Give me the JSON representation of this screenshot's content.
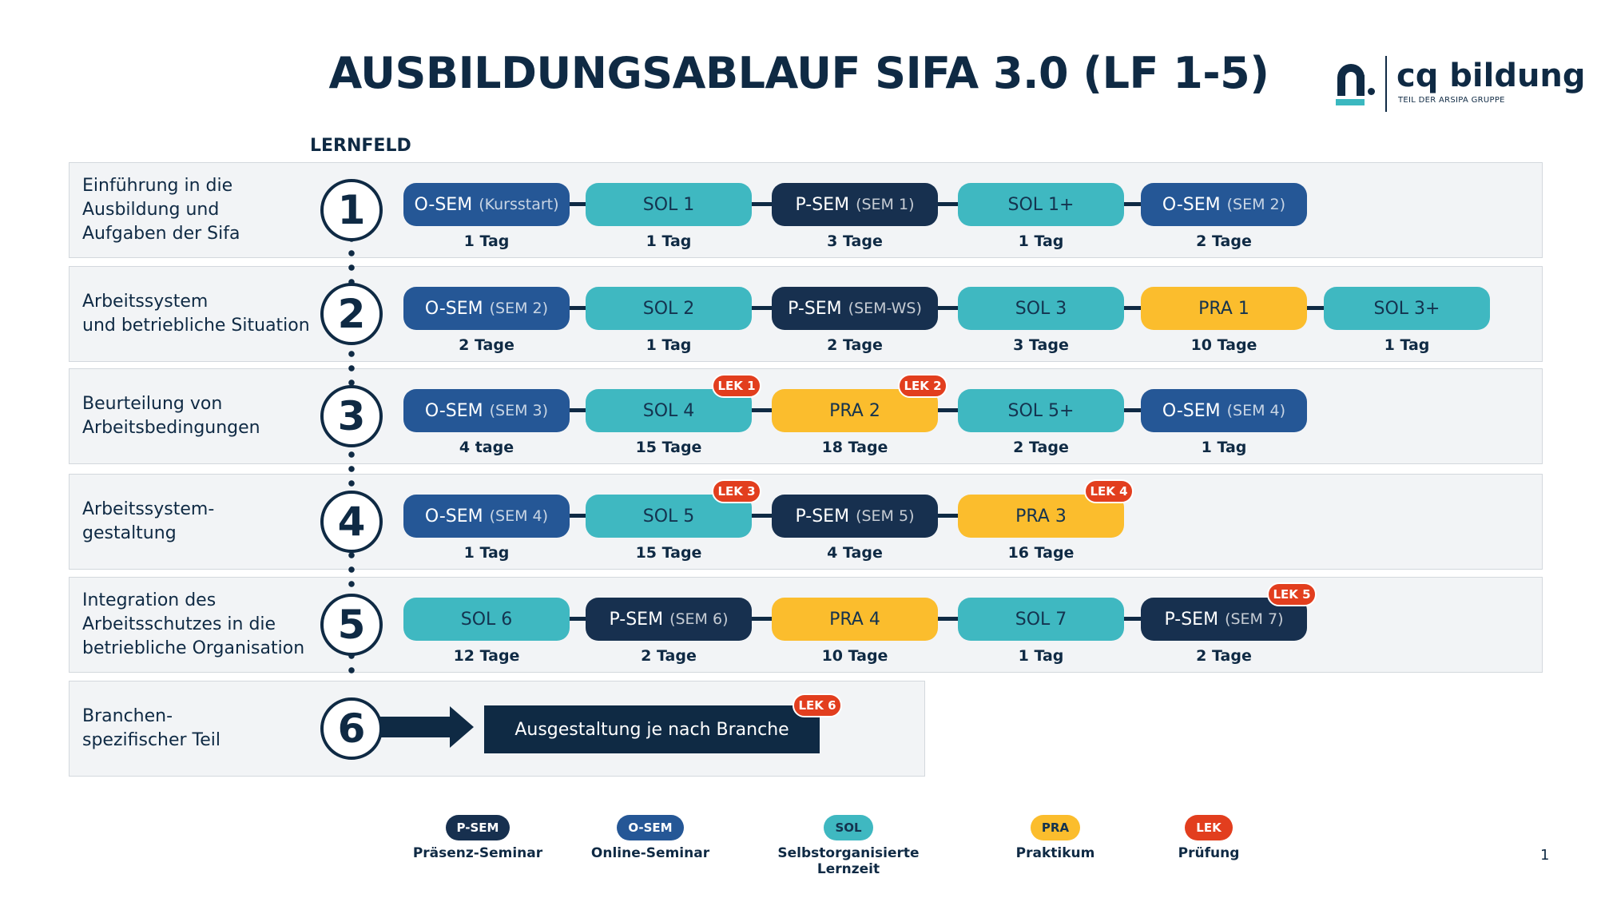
{
  "title": "AUSBILDUNGSABLAUF SIFA 3.0 (LF 1-5)",
  "logo": {
    "name": "cq bildung",
    "tagline": "TEIL DER ARSIPA GRUPPE"
  },
  "lernfeld_header": "LERNFELD",
  "colors": {
    "psem": "#17304f",
    "osem": "#255796",
    "sol": "#3fb8c1",
    "pra": "#fbbd2d",
    "lek": "#e23e1e"
  },
  "rows": [
    {
      "number": "1",
      "title": "Einführung in die\nAusbildung und\nAufgaben der Sifa",
      "steps": [
        {
          "type": "osem",
          "label": "O-SEM",
          "sub": "(Kursstart)",
          "duration": "1 Tag"
        },
        {
          "type": "sol",
          "label": "SOL 1",
          "sub": "",
          "duration": "1 Tag"
        },
        {
          "type": "psem",
          "label": "P-SEM",
          "sub": "(SEM 1)",
          "duration": "3 Tage"
        },
        {
          "type": "sol",
          "label": "SOL 1+",
          "sub": "",
          "duration": "1 Tag"
        },
        {
          "type": "osem",
          "label": "O-SEM",
          "sub": "(SEM 2)",
          "duration": "2 Tage"
        }
      ]
    },
    {
      "number": "2",
      "title": "Arbeitssystem\nund betriebliche Situation",
      "steps": [
        {
          "type": "osem",
          "label": "O-SEM",
          "sub": "(SEM 2)",
          "duration": "2 Tage"
        },
        {
          "type": "sol",
          "label": "SOL 2",
          "sub": "",
          "duration": "1 Tag"
        },
        {
          "type": "psem",
          "label": "P-SEM",
          "sub": "(SEM-WS)",
          "duration": "2 Tage"
        },
        {
          "type": "sol",
          "label": "SOL 3",
          "sub": "",
          "duration": "3 Tage"
        },
        {
          "type": "pra",
          "label": "PRA 1",
          "sub": "",
          "duration": "10 Tage"
        },
        {
          "type": "sol",
          "label": "SOL 3+",
          "sub": "",
          "duration": "1 Tag"
        }
      ]
    },
    {
      "number": "3",
      "title": "Beurteilung von\nArbeitsbedingungen",
      "steps": [
        {
          "type": "osem",
          "label": "O-SEM",
          "sub": "(SEM 3)",
          "duration": "4 tage"
        },
        {
          "type": "sol",
          "label": "SOL 4",
          "sub": "",
          "duration": "15 Tage",
          "lek": "LEK 1"
        },
        {
          "type": "pra",
          "label": "PRA 2",
          "sub": "",
          "duration": "18 Tage",
          "lek": "LEK 2"
        },
        {
          "type": "sol",
          "label": "SOL 5+",
          "sub": "",
          "duration": "2 Tage"
        },
        {
          "type": "osem",
          "label": "O-SEM",
          "sub": "(SEM 4)",
          "duration": "1 Tag"
        }
      ]
    },
    {
      "number": "4",
      "title": "Arbeitssystem-\ngestaltung",
      "steps": [
        {
          "type": "osem",
          "label": "O-SEM",
          "sub": "(SEM 4)",
          "duration": "1 Tag"
        },
        {
          "type": "sol",
          "label": "SOL 5",
          "sub": "",
          "duration": "15 Tage",
          "lek": "LEK 3"
        },
        {
          "type": "psem",
          "label": "P-SEM",
          "sub": "(SEM 5)",
          "duration": "4 Tage"
        },
        {
          "type": "pra",
          "label": "PRA 3",
          "sub": "",
          "duration": "16 Tage",
          "lek": "LEK 4"
        }
      ]
    },
    {
      "number": "5",
      "title": "Integration des\nArbeitsschutzes in die\nbetriebliche Organisation",
      "steps": [
        {
          "type": "sol",
          "label": "SOL 6",
          "sub": "",
          "duration": "12 Tage"
        },
        {
          "type": "psem",
          "label": "P-SEM",
          "sub": "(SEM 6)",
          "duration": "2 Tage"
        },
        {
          "type": "pra",
          "label": "PRA 4",
          "sub": "",
          "duration": "10 Tage"
        },
        {
          "type": "sol",
          "label": "SOL 7",
          "sub": "",
          "duration": "1 Tag"
        },
        {
          "type": "psem",
          "label": "P-SEM",
          "sub": "(SEM 7)",
          "duration": "2 Tage",
          "lek": "LEK 5"
        }
      ]
    }
  ],
  "row6": {
    "number": "6",
    "title": "Branchen-\nspezifischer Teil",
    "box_label": "Ausgestaltung je nach Branche",
    "lek": "LEK 6"
  },
  "legend": [
    {
      "type": "psem",
      "pill": "P-SEM",
      "label": "Präsenz-Seminar"
    },
    {
      "type": "osem",
      "pill": "O-SEM",
      "label": "Online-Seminar"
    },
    {
      "type": "sol",
      "pill": "SOL",
      "label": "Selbstorganisierte Lernzeit"
    },
    {
      "type": "pra",
      "pill": "PRA",
      "label": "Praktikum"
    },
    {
      "type": "lek",
      "pill": "LEK",
      "label": "Prüfung"
    }
  ],
  "page_number": "1"
}
